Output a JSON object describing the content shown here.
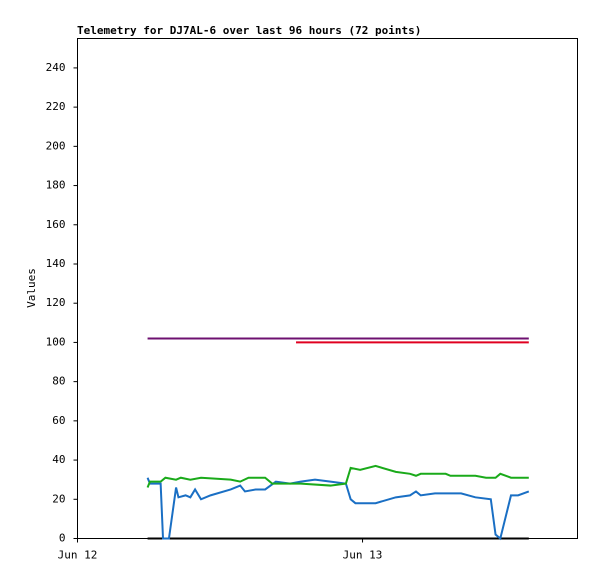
{
  "chart_data": {
    "type": "line",
    "title": "Telemetry for DJ7AL-6 over last 96 hours (72 points)",
    "y_label": "Values",
    "xlim": [
      0,
      42.1
    ],
    "ylim": [
      0,
      255
    ],
    "xticks": [
      {
        "value": 0,
        "label": "Jun 12"
      },
      {
        "value": 24,
        "label": "Jun 13"
      }
    ],
    "yticks": [
      0,
      20,
      40,
      60,
      80,
      100,
      120,
      140,
      160,
      180,
      200,
      220,
      240
    ],
    "series": [
      {
        "color": "#6e1070",
        "x": [
          5.9,
          38.0
        ],
        "values": [
          102,
          102
        ]
      },
      {
        "color": "#e00020",
        "x": [
          18.4,
          38.0
        ],
        "values": [
          100,
          100
        ]
      },
      {
        "color": "#000000",
        "x": [
          5.9,
          38.0
        ],
        "values": [
          0,
          0
        ]
      },
      {
        "color": "#1a6fc4",
        "x": [
          5.9,
          6.1,
          7.0,
          7.2,
          7.7,
          8.3,
          8.5,
          9.1,
          9.5,
          9.9,
          10.4,
          11.2,
          12.9,
          13.7,
          14.1,
          15.0,
          15.8,
          16.7,
          17.9,
          18.8,
          20.0,
          21.3,
          22.6,
          23.0,
          23.4,
          25.1,
          26.8,
          28.0,
          28.5,
          28.9,
          30.1,
          32.3,
          33.5,
          34.8,
          35.2,
          35.6,
          36.5,
          37.1,
          38.0
        ],
        "values": [
          31,
          28,
          28,
          0,
          0,
          26,
          21,
          22,
          21,
          25,
          20,
          22,
          25,
          27,
          24,
          25,
          25,
          29,
          28,
          29,
          30,
          29,
          28,
          20,
          18,
          18,
          21,
          22,
          24,
          22,
          23,
          23,
          21,
          20,
          2,
          0,
          22,
          22,
          24
        ]
      },
      {
        "color": "#1aaa1a",
        "x": [
          5.9,
          6.1,
          7.0,
          7.4,
          8.3,
          8.7,
          9.5,
          10.4,
          12.9,
          13.7,
          14.4,
          15.8,
          16.4,
          18.8,
          21.3,
          22.6,
          23.0,
          23.8,
          25.1,
          26.8,
          28.0,
          28.5,
          28.9,
          31.0,
          31.4,
          33.5,
          34.4,
          35.2,
          35.6,
          36.5,
          38.0
        ],
        "values": [
          26,
          29,
          29,
          31,
          30,
          31,
          30,
          31,
          30,
          29,
          31,
          31,
          28,
          28,
          27,
          28,
          36,
          35,
          37,
          34,
          33,
          32,
          33,
          33,
          32,
          32,
          31,
          31,
          33,
          31,
          31
        ]
      }
    ]
  }
}
